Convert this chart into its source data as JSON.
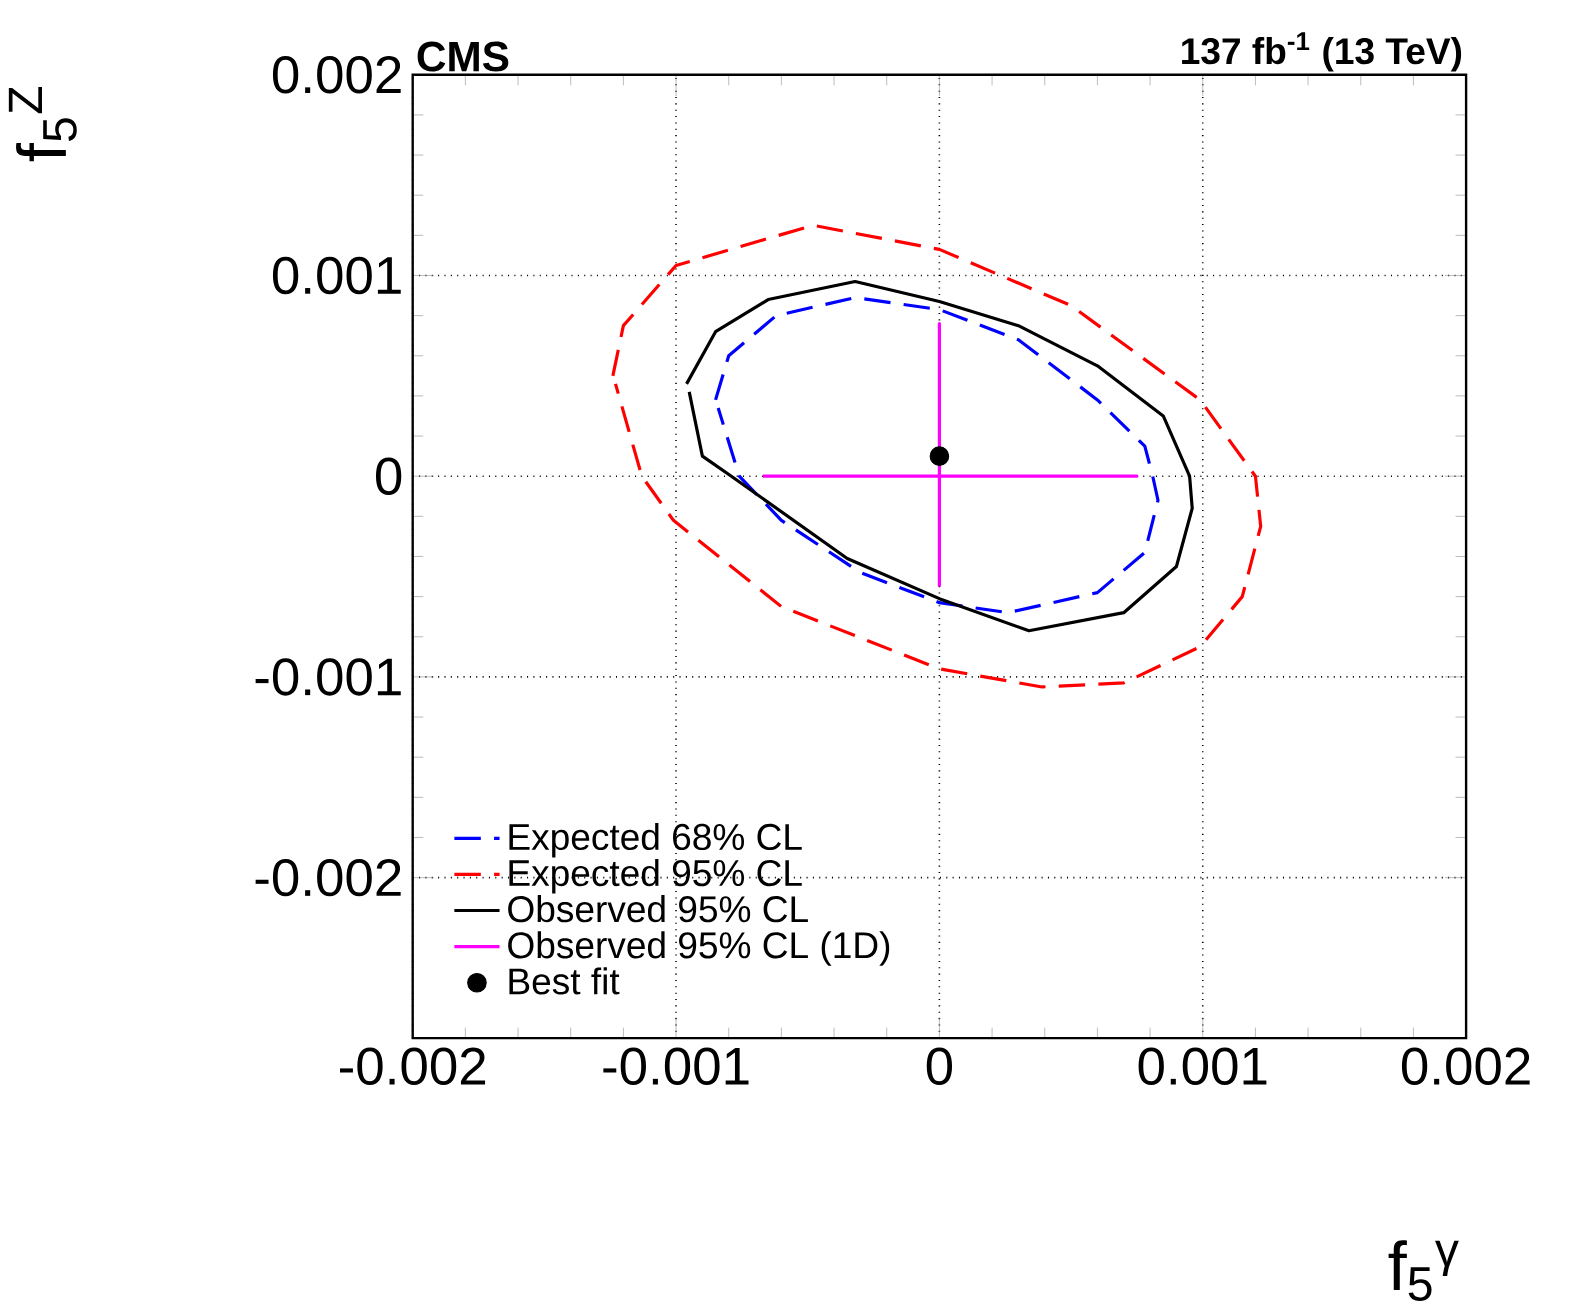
{
  "chart_data": {
    "type": "line",
    "title": "CMS",
    "subtitle": "137 fb$^{-1}$ (13 TeV)",
    "xlabel": "f$_{5}$$^{γ}$",
    "ylabel": "f$_{5}$$^{Z}$",
    "xlim": [
      -0.002,
      0.002
    ],
    "ylim": [
      -0.0028,
      0.002
    ],
    "xticks": [
      {
        "value": -0.002,
        "label": "-0.002"
      },
      {
        "value": -0.001,
        "label": "-0.001"
      },
      {
        "value": 0,
        "label": "0"
      },
      {
        "value": 0.001,
        "label": "0.001"
      },
      {
        "value": 0.002,
        "label": "0.002"
      }
    ],
    "yticks": [
      {
        "value": -0.002,
        "label": "-0.002"
      },
      {
        "value": -0.001,
        "label": "-0.001"
      },
      {
        "value": 0,
        "label": "0"
      },
      {
        "value": 0.001,
        "label": "0.001"
      },
      {
        "value": 0.002,
        "label": "0.002"
      }
    ],
    "grid": true,
    "legend": "bottom left",
    "series": [
      {
        "name": "Expected 68% CL",
        "color": "#0000ff",
        "line_style": "dashed",
        "marker": "none",
        "x": [
          -0.00085,
          -0.0008,
          -0.00062,
          -0.00032,
          0,
          0.0003,
          0.0006,
          0.00078,
          0.00081,
          0.00083,
          0.00078,
          0.0006,
          0.00026,
          0,
          -0.0003,
          -0.0006,
          -0.00076,
          -0.00084
        ],
        "values": [
          0.00038,
          0.0006,
          0.0008,
          0.00089,
          0.00083,
          0.00068,
          0.00038,
          0.00015,
          0,
          -0.00012,
          -0.00038,
          -0.00058,
          -0.00068,
          -0.00063,
          -0.00048,
          -0.00022,
          0,
          0.00034
        ]
      },
      {
        "name": "Expected 95% CL",
        "color": "#ff0000",
        "line_style": "dashed",
        "marker": "none",
        "x": [
          -0.00124,
          -0.0012,
          -0.001,
          -0.00048,
          0,
          0.0005,
          0.00099,
          0.0012,
          0.00122,
          0.00115,
          0.00099,
          0.0007,
          0.00039,
          0,
          -0.0006,
          -0.00101,
          -0.00113,
          -0.00123
        ],
        "values": [
          0.0005,
          0.00075,
          0.00105,
          0.00125,
          0.00113,
          0.00085,
          0.00038,
          0,
          -0.00025,
          -0.0006,
          -0.00085,
          -0.00103,
          -0.00105,
          -0.00096,
          -0.00065,
          -0.00022,
          0,
          0.00046
        ]
      },
      {
        "name": "Observed 95% CL",
        "color": "#000000",
        "line_style": "solid",
        "marker": "none",
        "x": [
          -0.00096,
          -0.00085,
          -0.00065,
          -0.00032,
          0,
          0.0003,
          0.0006,
          0.00085,
          0.00095,
          0.00096,
          0.0009,
          0.0007,
          0.00034,
          0,
          -0.00035,
          -0.00079,
          -0.0009,
          -0.00095
        ],
        "values": [
          0.00046,
          0.00072,
          0.00088,
          0.00097,
          0.00087,
          0.00075,
          0.00055,
          0.0003,
          0,
          -0.00016,
          -0.00045,
          -0.00068,
          -0.00077,
          -0.00061,
          -0.00041,
          0,
          0.0001,
          0.00042
        ]
      },
      {
        "name": "Observed 95% CL (1D)",
        "color": "#ff00ff",
        "line_style": "solid",
        "marker": "none",
        "x": [
          -0.00067,
          0.00075,
          0,
          0,
          0
        ],
        "values": [
          0,
          0,
          0,
          0.00076,
          -0.00055
        ]
      },
      {
        "name": "Best fit",
        "type": "scatter",
        "color": "#000000",
        "marker": "circle",
        "x": [
          0
        ],
        "values": [
          0.0001
        ]
      }
    ]
  }
}
